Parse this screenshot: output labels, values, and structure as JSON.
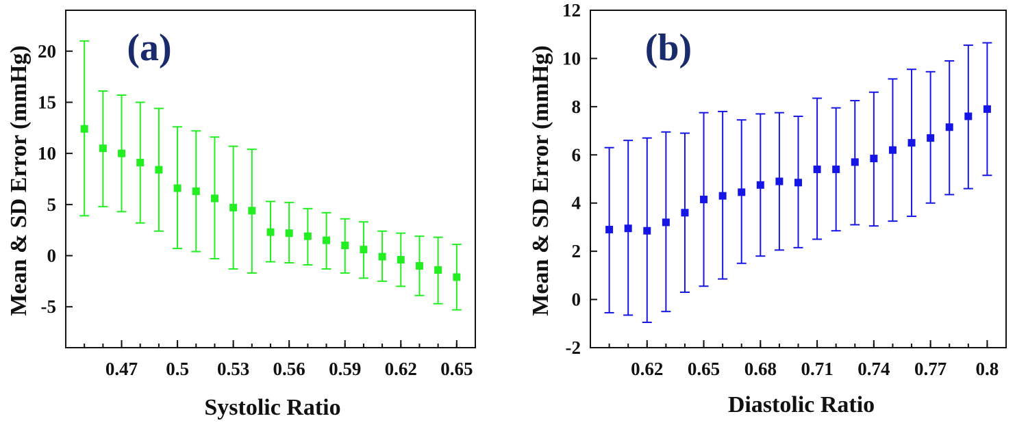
{
  "chart_data": [
    {
      "type": "scatter",
      "panel_label": "(a)",
      "xlabel": "Systolic Ratio",
      "ylabel": "Mean & SD Error (mmHg)",
      "xlim": [
        0.44,
        0.66
      ],
      "ylim": [
        -9,
        24
      ],
      "xticks": [
        0.47,
        0.5,
        0.53,
        0.56,
        0.59,
        0.62,
        0.65
      ],
      "xtick_labels": [
        "0.47",
        "0.5",
        "0.53",
        "0.56",
        "0.59",
        "0.62",
        "0.65"
      ],
      "yticks": [
        -5,
        0,
        5,
        10,
        15,
        20
      ],
      "ytick_labels": [
        "-5",
        "0",
        "5",
        "10",
        "15",
        "20"
      ],
      "color": "#22ee22",
      "grid": false,
      "series": [
        {
          "x": [
            0.45,
            0.46,
            0.47,
            0.48,
            0.49,
            0.5,
            0.51,
            0.52,
            0.53,
            0.54,
            0.55,
            0.56,
            0.57,
            0.58,
            0.59,
            0.6,
            0.61,
            0.62,
            0.63,
            0.64,
            0.65
          ],
          "mean": [
            12.4,
            10.5,
            10.0,
            9.1,
            8.4,
            6.6,
            6.3,
            5.6,
            4.7,
            4.4,
            2.3,
            2.2,
            1.9,
            1.5,
            1.0,
            0.6,
            -0.1,
            -0.4,
            -1.0,
            -1.4,
            -2.1
          ],
          "upper": [
            21.0,
            16.1,
            15.7,
            15.0,
            14.4,
            12.6,
            12.2,
            11.6,
            10.7,
            10.4,
            5.3,
            5.2,
            4.6,
            4.2,
            3.6,
            3.3,
            2.4,
            2.2,
            1.9,
            1.8,
            1.1
          ],
          "lower": [
            3.9,
            4.8,
            4.3,
            3.2,
            2.4,
            0.7,
            0.4,
            -0.3,
            -1.3,
            -1.7,
            -0.6,
            -0.7,
            -0.9,
            -1.3,
            -1.7,
            -2.2,
            -2.5,
            -3.0,
            -3.9,
            -4.7,
            -5.3
          ]
        }
      ]
    },
    {
      "type": "scatter",
      "panel_label": "(b)",
      "xlabel": "Diastolic Ratio",
      "ylabel": "Mean & SD Error (mmHg)",
      "xlim": [
        0.59,
        0.81
      ],
      "ylim": [
        -2,
        12
      ],
      "xticks": [
        0.62,
        0.65,
        0.68,
        0.71,
        0.74,
        0.77,
        0.8
      ],
      "xtick_labels": [
        "0.62",
        "0.65",
        "0.68",
        "0.71",
        "0.74",
        "0.77",
        "0.8"
      ],
      "yticks": [
        -2,
        0,
        2,
        4,
        6,
        8,
        10,
        12
      ],
      "ytick_labels": [
        "-2",
        "0",
        "2",
        "4",
        "6",
        "8",
        "10",
        "12"
      ],
      "color": "#1515e6",
      "grid": false,
      "series": [
        {
          "x": [
            0.6,
            0.61,
            0.62,
            0.63,
            0.64,
            0.65,
            0.66,
            0.67,
            0.68,
            0.69,
            0.7,
            0.71,
            0.72,
            0.73,
            0.74,
            0.75,
            0.76,
            0.77,
            0.78,
            0.79,
            0.8
          ],
          "mean": [
            2.9,
            2.95,
            2.85,
            3.2,
            3.6,
            4.15,
            4.3,
            4.45,
            4.75,
            4.9,
            4.85,
            5.4,
            5.4,
            5.7,
            5.85,
            6.2,
            6.5,
            6.7,
            7.15,
            7.6,
            7.9
          ],
          "upper": [
            6.3,
            6.6,
            6.7,
            6.95,
            6.9,
            7.75,
            7.8,
            7.45,
            7.7,
            7.75,
            7.6,
            8.35,
            7.95,
            8.25,
            8.6,
            9.15,
            9.55,
            9.45,
            9.9,
            10.55,
            10.65
          ],
          "lower": [
            -0.55,
            -0.65,
            -0.95,
            -0.5,
            0.3,
            0.55,
            0.85,
            1.5,
            1.8,
            2.05,
            2.15,
            2.5,
            2.85,
            3.1,
            3.05,
            3.25,
            3.45,
            4.0,
            4.35,
            4.6,
            5.15
          ]
        }
      ]
    }
  ]
}
